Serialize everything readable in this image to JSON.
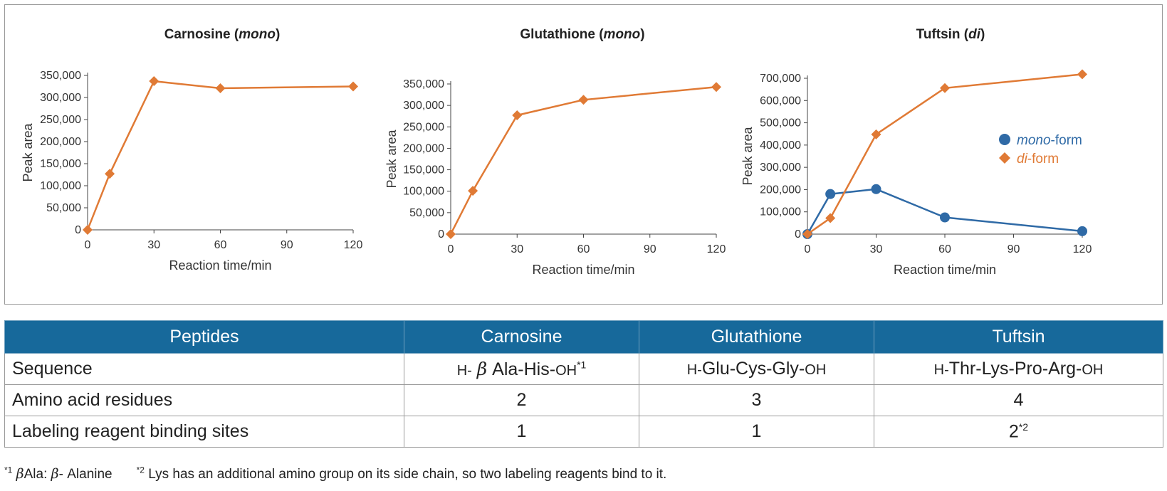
{
  "chart_data": [
    {
      "type": "line",
      "title": "Carnosine",
      "title_qualifier": "mono",
      "xlabel": "Reaction time/min",
      "ylabel": "Peak area",
      "xlim": [
        0,
        120
      ],
      "ylim": [
        0,
        350000
      ],
      "xticks": [
        0,
        30,
        60,
        90,
        120
      ],
      "yticks": [
        0,
        50000,
        100000,
        150000,
        200000,
        250000,
        300000,
        350000
      ],
      "series": [
        {
          "marker": "diamond",
          "color": "#e07a35",
          "x": [
            0,
            10,
            30,
            60,
            120
          ],
          "y": [
            0,
            127000,
            337000,
            321000,
            325000
          ]
        }
      ]
    },
    {
      "type": "line",
      "title": "Glutathione",
      "title_qualifier": "mono",
      "xlabel": "Reaction time/min",
      "ylabel": "Peak area",
      "xlim": [
        0,
        120
      ],
      "ylim": [
        0,
        350000
      ],
      "xticks": [
        0,
        30,
        60,
        90,
        120
      ],
      "yticks": [
        0,
        50000,
        100000,
        150000,
        200000,
        250000,
        300000,
        350000
      ],
      "series": [
        {
          "marker": "diamond",
          "color": "#e07a35",
          "x": [
            0,
            10,
            30,
            60,
            120
          ],
          "y": [
            0,
            101000,
            277000,
            313000,
            343000
          ]
        }
      ]
    },
    {
      "type": "line",
      "title": "Tuftsin",
      "title_qualifier": "di",
      "xlabel": "Reaction time/min",
      "ylabel": "Peak area",
      "xlim": [
        0,
        120
      ],
      "ylim": [
        0,
        700000
      ],
      "xticks": [
        0,
        30,
        60,
        90,
        120
      ],
      "yticks": [
        0,
        100000,
        200000,
        300000,
        400000,
        500000,
        600000,
        700000
      ],
      "legend_position": "right",
      "series": [
        {
          "name_italic": "mono",
          "name_suffix": "-form",
          "marker": "circle",
          "color": "#2f6aa6",
          "x": [
            0,
            10,
            30,
            60,
            120
          ],
          "y": [
            0,
            180000,
            202000,
            75000,
            13000
          ]
        },
        {
          "name_italic": "di",
          "name_suffix": "-form",
          "marker": "diamond",
          "color": "#e07a35",
          "x": [
            0,
            10,
            30,
            60,
            120
          ],
          "y": [
            0,
            72000,
            448000,
            656000,
            718000
          ]
        }
      ]
    }
  ],
  "table": {
    "headers": [
      "Peptides",
      "Carnosine",
      "Glutathione",
      "Tuftsin"
    ],
    "sequence": {
      "label": "Sequence",
      "carnosine": {
        "h": "H-",
        "beta": "β",
        "main": "Ala-His-",
        "oh": "OH",
        "note": "*1"
      },
      "glutathione": {
        "h": "H-",
        "main": "Glu-Cys-Gly-",
        "oh": "OH"
      },
      "tuftsin": {
        "h": "H-",
        "main": "Thr-Lys-Pro-Arg-",
        "oh": "OH"
      }
    },
    "residues": {
      "label": "Amino acid residues",
      "values": [
        "2",
        "3",
        "4"
      ]
    },
    "binding": {
      "label": "Labeling reagent binding sites",
      "values": [
        "1",
        "1",
        "2"
      ],
      "tuftsin_note": "*2"
    }
  },
  "footnotes": {
    "fn1_mark": "*1",
    "fn1_beta1": "β",
    "fn1_text1": "Ala: ",
    "fn1_beta2": "β",
    "fn1_text2": "- Alanine",
    "fn2_mark": "*2",
    "fn2_text": "Lys has an additional amino group on its side chain, so two labeling reagents bind to it."
  }
}
